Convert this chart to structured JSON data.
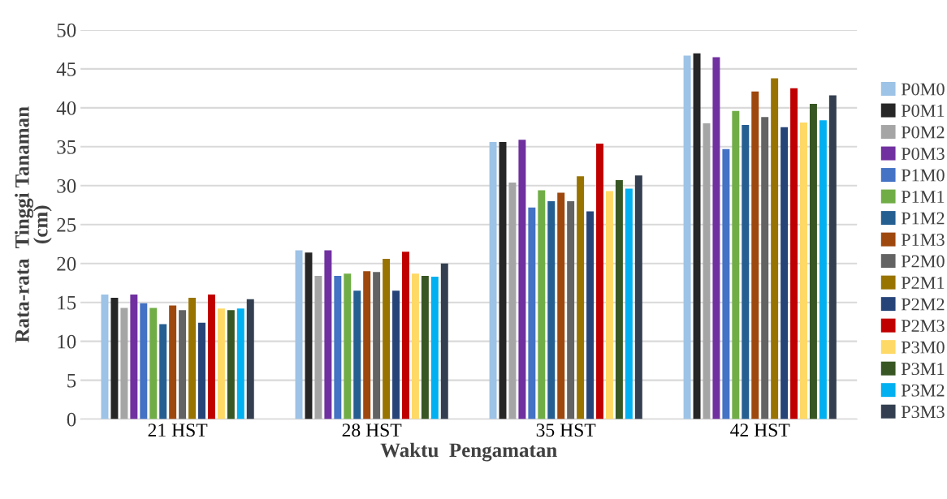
{
  "chart_data": {
    "type": "bar",
    "xlabel": "Waktu  Pengamatan",
    "ylabel": "Rata-rata  Tinggi Tanaman\n(cm)",
    "categories": [
      "21 HST",
      "28 HST",
      "35 HST",
      "42 HST"
    ],
    "series": [
      {
        "name": "P0M0",
        "color": "#9dc3e6",
        "values": [
          16.0,
          21.7,
          35.6,
          46.7
        ]
      },
      {
        "name": "P0M1",
        "color": "#262626",
        "values": [
          15.6,
          21.4,
          35.6,
          47.0
        ]
      },
      {
        "name": "P0M2",
        "color": "#a5a5a5",
        "values": [
          14.3,
          18.4,
          30.4,
          38.0
        ]
      },
      {
        "name": "P0M3",
        "color": "#7030a0",
        "values": [
          16.0,
          21.7,
          35.9,
          46.5
        ]
      },
      {
        "name": "P1M0",
        "color": "#4472c4",
        "values": [
          14.9,
          18.4,
          27.2,
          34.7
        ]
      },
      {
        "name": "P1M1",
        "color": "#70ad47",
        "values": [
          14.3,
          18.7,
          29.4,
          39.6
        ]
      },
      {
        "name": "P1M2",
        "color": "#255e91",
        "values": [
          12.2,
          16.5,
          28.0,
          37.8
        ]
      },
      {
        "name": "P1M3",
        "color": "#9e480e",
        "values": [
          14.6,
          19.0,
          29.1,
          42.1
        ]
      },
      {
        "name": "P2M0",
        "color": "#636363",
        "values": [
          14.0,
          18.9,
          28.0,
          38.8
        ]
      },
      {
        "name": "P2M1",
        "color": "#997300",
        "values": [
          15.6,
          20.6,
          31.2,
          43.8
        ]
      },
      {
        "name": "P2M2",
        "color": "#264478",
        "values": [
          12.4,
          16.5,
          26.7,
          37.5
        ]
      },
      {
        "name": "P2M3",
        "color": "#c00000",
        "values": [
          16.0,
          21.5,
          35.4,
          42.5
        ]
      },
      {
        "name": "P3M0",
        "color": "#ffd966",
        "values": [
          14.2,
          18.7,
          29.3,
          38.1
        ]
      },
      {
        "name": "P3M1",
        "color": "#375623",
        "values": [
          14.0,
          18.4,
          30.7,
          40.5
        ]
      },
      {
        "name": "P3M2",
        "color": "#00b0f0",
        "values": [
          14.2,
          18.3,
          29.6,
          38.4
        ]
      },
      {
        "name": "P3M3",
        "color": "#333f50",
        "values": [
          15.4,
          20.0,
          31.3,
          41.6
        ]
      }
    ],
    "ylim": [
      0,
      50
    ],
    "yticks": [
      0,
      5,
      10,
      15,
      20,
      25,
      30,
      35,
      40,
      45,
      50
    ],
    "grid": "y",
    "legend": "right"
  }
}
